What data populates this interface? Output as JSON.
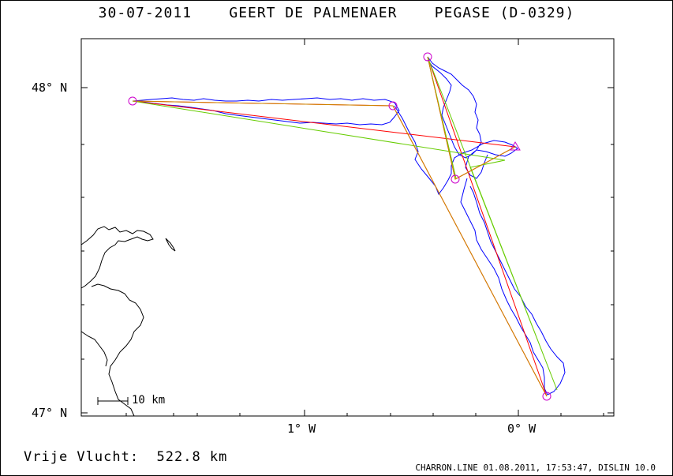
{
  "title": "30-07-2011    GEERT DE PALMENAER    PEGASE (D-0329)",
  "axes": {
    "y_labels": [
      "48° N",
      "47° N"
    ],
    "x_labels": [
      "1° W",
      "0° W"
    ]
  },
  "scale_bar": {
    "label": "10 km"
  },
  "footer": {
    "distance": "Vrije Vlucht:  522.8 km",
    "credit": "CHARRON.LINE 01.08.2011, 17:53:47, DISLIN 10.0"
  },
  "colors": {
    "track": "#0000ff",
    "red_route": "#ff0000",
    "green_route": "#66cc00",
    "orange_route": "#cc8800",
    "turnpoint": "#cc00cc",
    "coast": "#000000"
  }
}
